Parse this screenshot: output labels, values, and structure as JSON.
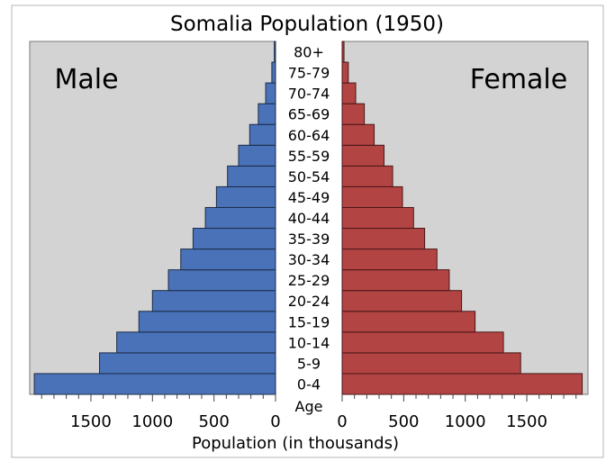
{
  "chart_data": {
    "type": "bar",
    "title": "Somalia Population (1950)",
    "xlabel": "Population (in thousands)",
    "age_axis_label": "Age",
    "left_label": "Male",
    "right_label": "Female",
    "categories": [
      "0-4",
      "5-9",
      "10-14",
      "15-19",
      "20-24",
      "25-29",
      "30-34",
      "35-39",
      "40-44",
      "45-49",
      "50-54",
      "55-59",
      "60-64",
      "65-69",
      "70-74",
      "75-79",
      "80+"
    ],
    "series": [
      {
        "name": "Male",
        "color": "#4a72b8",
        "values": [
          1960,
          1430,
          1290,
          1110,
          1000,
          870,
          770,
          670,
          570,
          480,
          390,
          300,
          210,
          140,
          80,
          30,
          10
        ]
      },
      {
        "name": "Female",
        "color": "#b34444",
        "values": [
          1950,
          1450,
          1310,
          1080,
          970,
          870,
          770,
          670,
          580,
          490,
          410,
          340,
          260,
          180,
          110,
          50,
          15
        ]
      }
    ],
    "male_xticks": [
      1500,
      1000,
      500,
      0
    ],
    "female_xticks": [
      0,
      500,
      1000,
      1500
    ],
    "xlim": [
      0,
      2000
    ],
    "plot_background": "#d3d3d3",
    "grid": false
  }
}
